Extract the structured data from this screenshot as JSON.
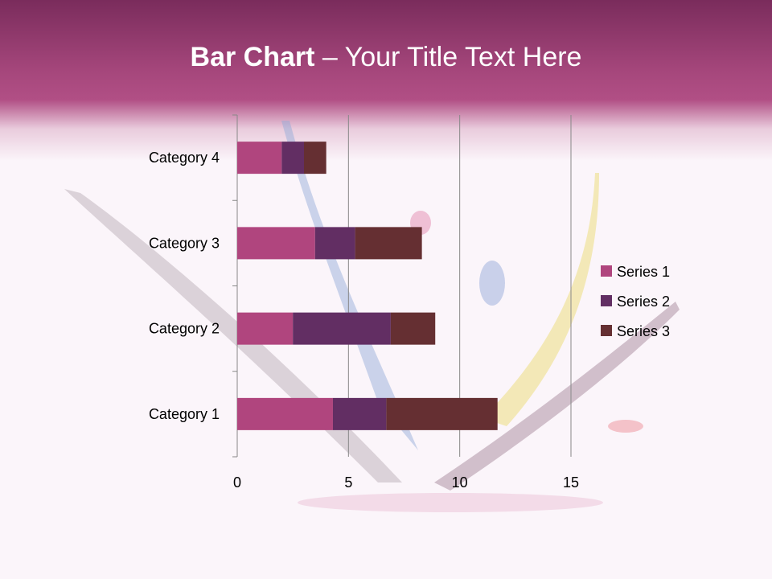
{
  "slide": {
    "title_bold": "Bar Chart",
    "title_rest": " – Your Title Text Here"
  },
  "chart_data": {
    "type": "bar",
    "orientation": "horizontal",
    "stacked": true,
    "categories": [
      "Category 1",
      "Category 2",
      "Category 3",
      "Category 4"
    ],
    "series": [
      {
        "name": "Series 1",
        "values": [
          4.3,
          2.5,
          3.5,
          2.0
        ],
        "color": "#b0457e"
      },
      {
        "name": "Series 2",
        "values": [
          2.4,
          4.4,
          1.8,
          1.0
        ],
        "color": "#622e63"
      },
      {
        "name": "Series 3",
        "values": [
          5.0,
          2.0,
          3.0,
          1.0
        ],
        "color": "#652f32"
      }
    ],
    "xlim": [
      0,
      15
    ],
    "xticks": [
      "0",
      "5",
      "10",
      "15"
    ],
    "grid": true,
    "legend": "right"
  }
}
